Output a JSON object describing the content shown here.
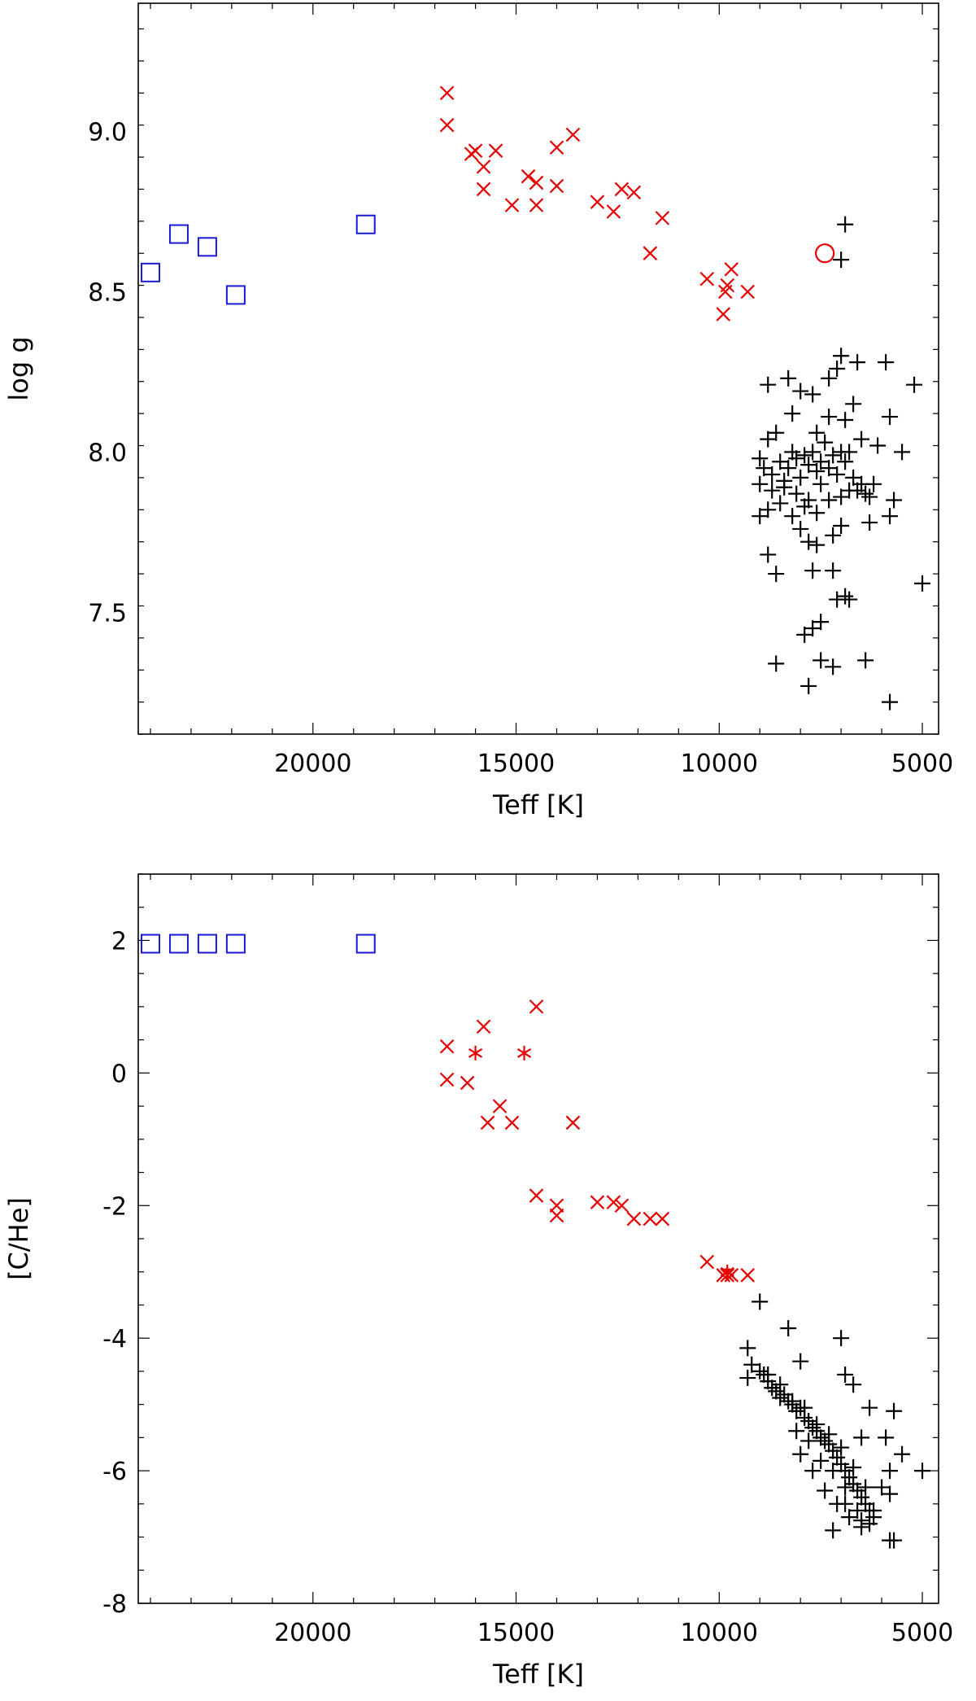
{
  "colors": {
    "black": "#000000",
    "red": "#e60000",
    "blue": "#1a1ad6"
  },
  "chart_data": [
    {
      "type": "scatter",
      "title": "",
      "xlabel": "Teff [K]",
      "ylabel": "log g",
      "xlim": [
        24300,
        4600
      ],
      "ylim": [
        7.12,
        9.4
      ],
      "xticks": [
        20000,
        15000,
        10000,
        5000
      ],
      "xtick_labels": [
        "20000",
        "15000",
        "10000",
        "5000"
      ],
      "yticks": [
        7.5,
        8.0,
        8.5,
        9.0
      ],
      "ytick_labels": [
        "7.5",
        "8.0",
        "8.5",
        "9.0"
      ],
      "series": [
        {
          "name": "square",
          "marker": "square",
          "color": "blue",
          "points": [
            [
              24000,
              8.56
            ],
            [
              23300,
              8.68
            ],
            [
              22600,
              8.64
            ],
            [
              21900,
              8.49
            ],
            [
              18700,
              8.71
            ]
          ]
        },
        {
          "name": "x",
          "marker": "x",
          "color": "red",
          "points": [
            [
              16700,
              9.12
            ],
            [
              16700,
              9.02
            ],
            [
              16100,
              8.93
            ],
            [
              16000,
              8.94
            ],
            [
              15800,
              8.89
            ],
            [
              15800,
              8.82
            ],
            [
              15500,
              8.94
            ],
            [
              15100,
              8.77
            ],
            [
              14700,
              8.86
            ],
            [
              14500,
              8.84
            ],
            [
              14500,
              8.77
            ],
            [
              14000,
              8.95
            ],
            [
              14000,
              8.83
            ],
            [
              13600,
              8.99
            ],
            [
              13000,
              8.78
            ],
            [
              12600,
              8.75
            ],
            [
              12400,
              8.82
            ],
            [
              12100,
              8.81
            ],
            [
              11700,
              8.62
            ],
            [
              11400,
              8.73
            ],
            [
              10300,
              8.54
            ],
            [
              9900,
              8.43
            ],
            [
              9850,
              8.5
            ],
            [
              9800,
              8.52
            ],
            [
              9700,
              8.57
            ],
            [
              9300,
              8.5
            ]
          ]
        },
        {
          "name": "circle",
          "marker": "circle",
          "color": "red",
          "points": [
            [
              7400,
              8.62
            ]
          ]
        },
        {
          "name": "plus",
          "marker": "plus",
          "color": "black",
          "points": [
            [
              6900,
              8.71
            ],
            [
              7000,
              8.6
            ],
            [
              6600,
              8.28
            ],
            [
              7000,
              8.3
            ],
            [
              5900,
              8.28
            ],
            [
              5200,
              8.21
            ],
            [
              5800,
              8.11
            ],
            [
              6700,
              8.15
            ],
            [
              8800,
              8.21
            ],
            [
              8300,
              8.23
            ],
            [
              7700,
              8.18
            ],
            [
              7300,
              8.23
            ],
            [
              7100,
              8.26
            ],
            [
              6900,
              8.1
            ],
            [
              5500,
              8.0
            ],
            [
              6100,
              8.02
            ],
            [
              8800,
              8.04
            ],
            [
              8600,
              8.06
            ],
            [
              8200,
              8.12
            ],
            [
              8000,
              8.19
            ],
            [
              7600,
              8.06
            ],
            [
              7300,
              8.11
            ],
            [
              6500,
              8.04
            ],
            [
              6800,
              8.0
            ],
            [
              9000,
              7.98
            ],
            [
              8900,
              7.95
            ],
            [
              8700,
              7.93
            ],
            [
              8500,
              7.97
            ],
            [
              8400,
              7.91
            ],
            [
              8300,
              7.95
            ],
            [
              8200,
              8.0
            ],
            [
              8100,
              7.98
            ],
            [
              8000,
              7.92
            ],
            [
              7900,
              7.99
            ],
            [
              7800,
              7.96
            ],
            [
              7700,
              8.0
            ],
            [
              7600,
              7.94
            ],
            [
              7500,
              7.97
            ],
            [
              7400,
              8.03
            ],
            [
              7300,
              7.95
            ],
            [
              7200,
              7.99
            ],
            [
              7100,
              7.93
            ],
            [
              7000,
              8.0
            ],
            [
              6900,
              7.97
            ],
            [
              6700,
              7.92
            ],
            [
              6600,
              7.88
            ],
            [
              6500,
              7.9
            ],
            [
              6400,
              7.87
            ],
            [
              6300,
              7.86
            ],
            [
              6200,
              7.9
            ],
            [
              6800,
              7.88
            ],
            [
              7000,
              7.86
            ],
            [
              7500,
              7.9
            ],
            [
              7800,
              7.85
            ],
            [
              8100,
              7.87
            ],
            [
              8400,
              7.89
            ],
            [
              8700,
              7.88
            ],
            [
              9000,
              7.9
            ],
            [
              8800,
              7.82
            ],
            [
              8500,
              7.84
            ],
            [
              8200,
              7.8
            ],
            [
              7900,
              7.83
            ],
            [
              7600,
              7.81
            ],
            [
              7300,
              7.85
            ],
            [
              9000,
              7.8
            ],
            [
              8000,
              7.76
            ],
            [
              7800,
              7.72
            ],
            [
              7600,
              7.71
            ],
            [
              7200,
              7.74
            ],
            [
              7000,
              7.77
            ],
            [
              6300,
              7.78
            ],
            [
              5800,
              7.8
            ],
            [
              5700,
              7.85
            ],
            [
              8800,
              7.68
            ],
            [
              8600,
              7.62
            ],
            [
              7700,
              7.63
            ],
            [
              7200,
              7.63
            ],
            [
              7100,
              7.54
            ],
            [
              6900,
              7.55
            ],
            [
              6800,
              7.54
            ],
            [
              5000,
              7.59
            ],
            [
              7500,
              7.47
            ],
            [
              7700,
              7.45
            ],
            [
              7900,
              7.43
            ],
            [
              8600,
              7.34
            ],
            [
              7500,
              7.35
            ],
            [
              7200,
              7.33
            ],
            [
              6400,
              7.35
            ],
            [
              7800,
              7.27
            ],
            [
              5800,
              7.22
            ]
          ]
        }
      ]
    },
    {
      "type": "scatter",
      "title": "",
      "xlabel": "Teff [K]",
      "ylabel": "[C/He]",
      "xlim": [
        24300,
        4600
      ],
      "ylim": [
        -8,
        3
      ],
      "xticks": [
        20000,
        15000,
        10000,
        5000
      ],
      "xtick_labels": [
        "20000",
        "15000",
        "10000",
        "5000"
      ],
      "yticks": [
        -8,
        -6,
        -4,
        -2,
        0,
        2
      ],
      "ytick_labels": [
        "-8",
        "-6",
        "-4",
        "-2",
        "0",
        "2"
      ],
      "series": [
        {
          "name": "square",
          "marker": "square",
          "color": "blue",
          "points": [
            [
              24000,
              1.95
            ],
            [
              23300,
              1.95
            ],
            [
              22600,
              1.95
            ],
            [
              21900,
              1.95
            ],
            [
              18700,
              1.95
            ]
          ]
        },
        {
          "name": "x",
          "marker": "x",
          "color": "red",
          "points": [
            [
              16700,
              0.4
            ],
            [
              16700,
              -0.1
            ],
            [
              16200,
              -0.15
            ],
            [
              15800,
              0.7
            ],
            [
              15700,
              -0.75
            ],
            [
              15400,
              -0.5
            ],
            [
              15100,
              -0.75
            ],
            [
              14500,
              1.0
            ],
            [
              14500,
              -1.85
            ],
            [
              14000,
              -2.0
            ],
            [
              14000,
              -2.15
            ],
            [
              13600,
              -0.75
            ],
            [
              13000,
              -1.95
            ],
            [
              12600,
              -1.95
            ],
            [
              12400,
              -2.0
            ],
            [
              12100,
              -2.2
            ],
            [
              11700,
              -2.2
            ],
            [
              11400,
              -2.2
            ],
            [
              10300,
              -2.85
            ],
            [
              9900,
              -3.05
            ],
            [
              9800,
              -3.05
            ],
            [
              9700,
              -3.05
            ],
            [
              9300,
              -3.05
            ]
          ]
        },
        {
          "name": "asterisk",
          "marker": "asterisk",
          "color": "red",
          "points": [
            [
              16000,
              0.3
            ],
            [
              14800,
              0.3
            ],
            [
              9800,
              -3.0
            ]
          ]
        },
        {
          "name": "plus",
          "marker": "plus",
          "color": "black",
          "points": [
            [
              9000,
              -3.45
            ],
            [
              8300,
              -3.85
            ],
            [
              7000,
              -4.0
            ],
            [
              8000,
              -4.35
            ],
            [
              9300,
              -4.15
            ],
            [
              9200,
              -4.4
            ],
            [
              9300,
              -4.6
            ],
            [
              9000,
              -4.5
            ],
            [
              8900,
              -4.55
            ],
            [
              8800,
              -4.65
            ],
            [
              8700,
              -4.75
            ],
            [
              8600,
              -4.8
            ],
            [
              8500,
              -4.9
            ],
            [
              8400,
              -4.85
            ],
            [
              8300,
              -4.95
            ],
            [
              8200,
              -5.0
            ],
            [
              8100,
              -5.1
            ],
            [
              8000,
              -5.05
            ],
            [
              7900,
              -5.2
            ],
            [
              7800,
              -5.25
            ],
            [
              7700,
              -5.35
            ],
            [
              7600,
              -5.4
            ],
            [
              7500,
              -5.5
            ],
            [
              7400,
              -5.55
            ],
            [
              7300,
              -5.6
            ],
            [
              7200,
              -5.7
            ],
            [
              7100,
              -5.8
            ],
            [
              7000,
              -5.9
            ],
            [
              6900,
              -6.0
            ],
            [
              6800,
              -6.1
            ],
            [
              6700,
              -6.2
            ],
            [
              6600,
              -6.3
            ],
            [
              6500,
              -6.4
            ],
            [
              6400,
              -6.5
            ],
            [
              6300,
              -6.6
            ],
            [
              6200,
              -6.7
            ],
            [
              8800,
              -4.55
            ],
            [
              8500,
              -4.7
            ],
            [
              8200,
              -4.95
            ],
            [
              7900,
              -5.05
            ],
            [
              7600,
              -5.3
            ],
            [
              7300,
              -5.45
            ],
            [
              7000,
              -5.65
            ],
            [
              6700,
              -5.95
            ],
            [
              6400,
              -6.25
            ],
            [
              8100,
              -5.4
            ],
            [
              7800,
              -5.55
            ],
            [
              7500,
              -5.85
            ],
            [
              7200,
              -6.0
            ],
            [
              6900,
              -6.25
            ],
            [
              6600,
              -6.6
            ],
            [
              6300,
              -6.8
            ],
            [
              8000,
              -5.75
            ],
            [
              7700,
              -6.0
            ],
            [
              7400,
              -6.3
            ],
            [
              7100,
              -6.5
            ],
            [
              6800,
              -6.7
            ],
            [
              6500,
              -6.75
            ],
            [
              6900,
              -4.55
            ],
            [
              6700,
              -4.7
            ],
            [
              6500,
              -5.5
            ],
            [
              6300,
              -5.05
            ],
            [
              5700,
              -5.1
            ],
            [
              5900,
              -5.5
            ],
            [
              5500,
              -5.75
            ],
            [
              5000,
              -6.0
            ],
            [
              5800,
              -6.0
            ],
            [
              6000,
              -6.25
            ],
            [
              5800,
              -6.35
            ],
            [
              6200,
              -6.6
            ],
            [
              7200,
              -6.9
            ],
            [
              6900,
              -6.5
            ],
            [
              6500,
              -6.85
            ],
            [
              5800,
              -7.05
            ],
            [
              5700,
              -7.05
            ]
          ]
        }
      ]
    }
  ]
}
